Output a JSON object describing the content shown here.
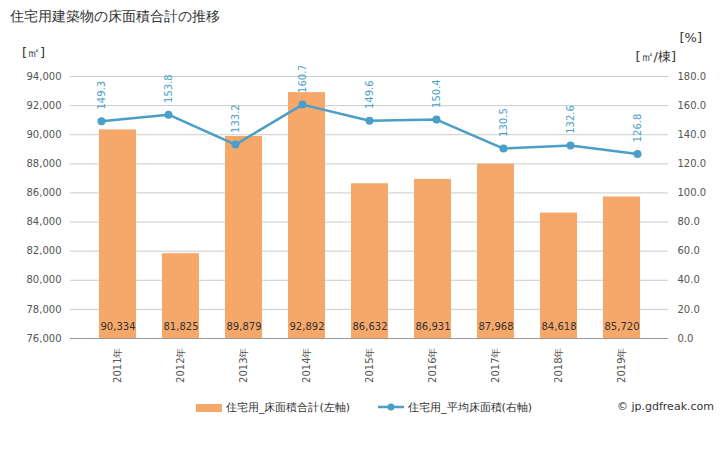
{
  "chart_data": {
    "type": "bar",
    "title": "住宅用建築物の床面積合計の推移",
    "categories": [
      "2011年",
      "2012年",
      "2013年",
      "2014年",
      "2015年",
      "2016年",
      "2017年",
      "2018年",
      "2019年"
    ],
    "series": [
      {
        "name": "住宅用_床面積合計(左軸)",
        "type": "bar",
        "color": "#f5a86a",
        "values": [
          90334,
          81825,
          89879,
          92892,
          86632,
          86931,
          87968,
          84618,
          85720
        ],
        "value_labels": [
          "90,334",
          "81,825",
          "89,879",
          "92,892",
          "86,632",
          "86,931",
          "87,968",
          "84,618",
          "85,720"
        ]
      },
      {
        "name": "住宅用_平均床面積(右軸)",
        "type": "line",
        "axis": "y2",
        "color": "#4a9fc8",
        "marker": "circle",
        "values": [
          149.3,
          153.8,
          133.2,
          160.7,
          149.6,
          150.4,
          130.5,
          132.6,
          126.8
        ]
      }
    ],
    "y_label": "[㎡]",
    "y2_label": "[㎡/棟]",
    "annotations": [
      "[%]"
    ],
    "ylim": [
      76000,
      94000
    ],
    "yticks": [
      {
        "value": 76000,
        "label": "76,000"
      },
      {
        "value": 78000,
        "label": "78,000"
      },
      {
        "value": 80000,
        "label": "80,000"
      },
      {
        "value": 82000,
        "label": "82,000"
      },
      {
        "value": 84000,
        "label": "84,000"
      },
      {
        "value": 86000,
        "label": "86,000"
      },
      {
        "value": 88000,
        "label": "88,000"
      },
      {
        "value": 90000,
        "label": "90,000"
      },
      {
        "value": 92000,
        "label": "92,000"
      },
      {
        "value": 94000,
        "label": "94,000"
      }
    ],
    "y2lim": [
      0,
      180
    ],
    "y2ticks": [
      {
        "value": 0,
        "label": "0.0"
      },
      {
        "value": 20,
        "label": "20.0"
      },
      {
        "value": 40,
        "label": "40.0"
      },
      {
        "value": 60,
        "label": "60.0"
      },
      {
        "value": 80,
        "label": "80.0"
      },
      {
        "value": 100,
        "label": "100.0"
      },
      {
        "value": 120,
        "label": "120.0"
      },
      {
        "value": 140,
        "label": "140.0"
      },
      {
        "value": 160,
        "label": "160.0"
      },
      {
        "value": 180,
        "label": "180.0"
      }
    ],
    "data_labels": true,
    "grid": true,
    "legend": "bottom",
    "caption": "© jp.gdfreak.com"
  }
}
